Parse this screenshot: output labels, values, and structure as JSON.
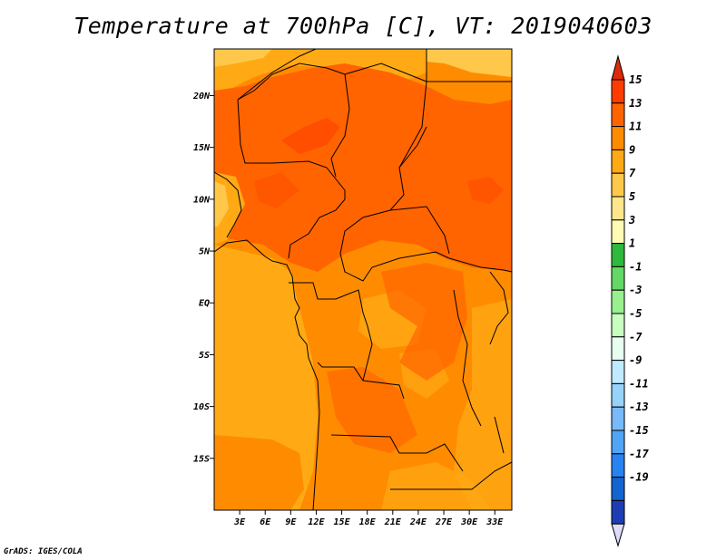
{
  "title": "Temperature at 700hPa [C], VT: 2019040603",
  "credit": "GrADS: IGES/COLA",
  "map": {
    "lon_range": [
      0,
      35
    ],
    "lat_range": [
      -20,
      24.5
    ],
    "lon_ticks": [
      {
        "value": 3,
        "label": "3E"
      },
      {
        "value": 6,
        "label": "6E"
      },
      {
        "value": 9,
        "label": "9E"
      },
      {
        "value": 12,
        "label": "12E"
      },
      {
        "value": 15,
        "label": "15E"
      },
      {
        "value": 18,
        "label": "18E"
      },
      {
        "value": 21,
        "label": "21E"
      },
      {
        "value": 24,
        "label": "24E"
      },
      {
        "value": 27,
        "label": "27E"
      },
      {
        "value": 30,
        "label": "30E"
      },
      {
        "value": 33,
        "label": "33E"
      }
    ],
    "lat_ticks": [
      {
        "value": 20,
        "label": "20N"
      },
      {
        "value": 15,
        "label": "15N"
      },
      {
        "value": 10,
        "label": "10N"
      },
      {
        "value": 5,
        "label": "5N"
      },
      {
        "value": 0,
        "label": "EQ"
      },
      {
        "value": -5,
        "label": "5S"
      },
      {
        "value": -10,
        "label": "10S"
      },
      {
        "value": -15,
        "label": "15S"
      }
    ]
  },
  "colorbar": {
    "labels": [
      "15",
      "13",
      "11",
      "9",
      "7",
      "5",
      "3",
      "1",
      "-1",
      "-3",
      "-5",
      "-7",
      "-9",
      "-11",
      "-13",
      "-15",
      "-17",
      "-19"
    ],
    "top_color": "#dc2a0a",
    "bottom_color": "#dcdcfa",
    "colors": [
      "#ff3c00",
      "#ff6400",
      "#ff8c00",
      "#ffaa14",
      "#ffc84b",
      "#ffe68c",
      "#fffab4",
      "#2eb83c",
      "#64d764",
      "#98f08e",
      "#c8ffc0",
      "#e6fff0",
      "#c0eaff",
      "#96d2fa",
      "#78b9fa",
      "#50a5f5",
      "#2882f0",
      "#1464d2",
      "#1e3cb4",
      "#0a0a78"
    ]
  },
  "chart_data": {
    "type": "heatmap",
    "title": "Temperature at 700hPa [C], VT: 2019040603",
    "variable": "Temperature at 700hPa",
    "units": "C",
    "valid_time": "2019040603",
    "x_ticks": [
      "3E",
      "6E",
      "9E",
      "12E",
      "15E",
      "18E",
      "21E",
      "24E",
      "27E",
      "30E",
      "33E"
    ],
    "y_ticks": [
      "20N",
      "15N",
      "10N",
      "5N",
      "EQ",
      "5S",
      "10S",
      "15S"
    ],
    "levels": [
      -19,
      -17,
      -15,
      -13,
      -11,
      -9,
      -7,
      -5,
      -3,
      -1,
      1,
      3,
      5,
      7,
      9,
      11,
      13,
      15
    ],
    "dominant_values": "9 to 13 C over the domain; 11-13 C over the Sahel/northern belt, 9-11 C over the central basin and south-east"
  }
}
